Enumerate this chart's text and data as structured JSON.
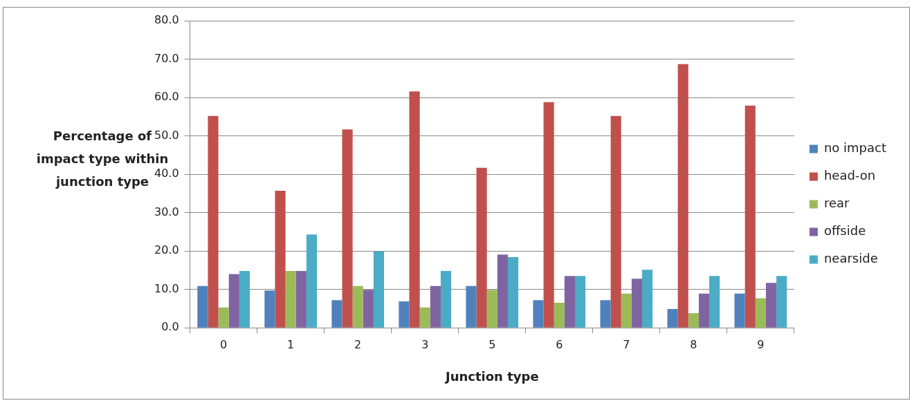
{
  "chart_data": {
    "type": "bar",
    "xlabel": "Junction type",
    "ylabel": "Percentage of impact type within junction type",
    "categories": [
      "0",
      "1",
      "2",
      "3",
      "5",
      "6",
      "7",
      "8",
      "9"
    ],
    "series": [
      {
        "name": "no impact",
        "color": "#4f81bd",
        "values": [
          10.9,
          9.7,
          7.2,
          6.9,
          10.9,
          7.2,
          7.2,
          4.9,
          8.9
        ]
      },
      {
        "name": "head-on",
        "color": "#c0504d",
        "values": [
          55.2,
          35.7,
          51.7,
          61.6,
          41.7,
          58.8,
          55.2,
          68.7,
          57.9
        ]
      },
      {
        "name": "rear",
        "color": "#9bbb59",
        "values": [
          5.3,
          14.8,
          10.9,
          5.3,
          9.9,
          6.5,
          8.9,
          3.8,
          7.7
        ]
      },
      {
        "name": "offside",
        "color": "#8064a2",
        "values": [
          14.0,
          14.8,
          9.9,
          10.9,
          19.1,
          13.5,
          12.8,
          8.9,
          11.7
        ]
      },
      {
        "name": "nearside",
        "color": "#4bacc6",
        "values": [
          14.8,
          24.3,
          19.9,
          14.8,
          18.4,
          13.5,
          15.1,
          13.5,
          13.5
        ]
      }
    ],
    "ylim": [
      0,
      80
    ],
    "yticks": [
      {
        "value": 0,
        "label": "0.0"
      },
      {
        "value": 10,
        "label": "10.0"
      },
      {
        "value": 20,
        "label": "20.0"
      },
      {
        "value": 30,
        "label": "30.0"
      },
      {
        "value": 40,
        "label": "40.0"
      },
      {
        "value": 50,
        "label": "50.0"
      },
      {
        "value": 60,
        "label": "60.0"
      },
      {
        "value": 70,
        "label": "70.0"
      },
      {
        "value": 80,
        "label": "80.0"
      }
    ],
    "grid": "y",
    "legend": "right"
  }
}
